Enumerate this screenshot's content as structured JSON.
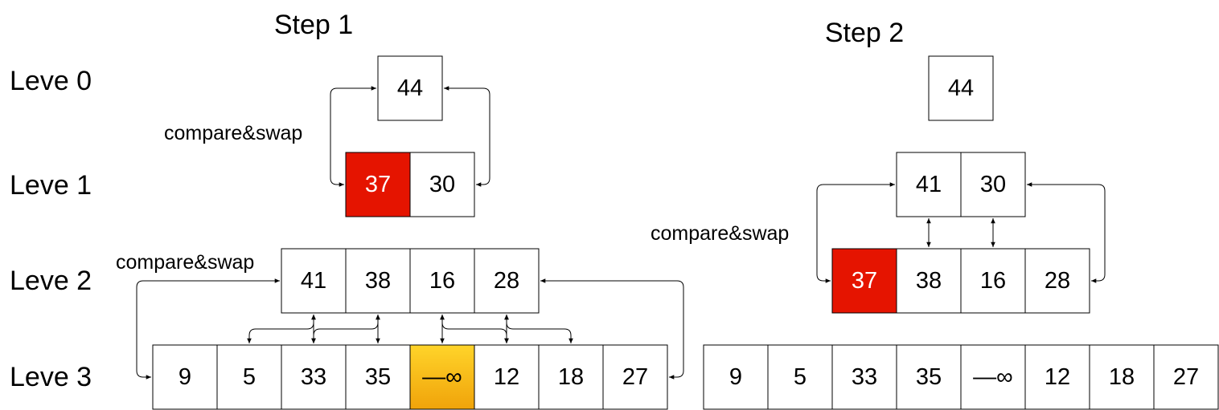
{
  "steps": [
    {
      "title": "Step 1",
      "annotations": [
        "compare&swap",
        "compare&swap"
      ]
    },
    {
      "title": "Step 2",
      "annotations": [
        "compare&swap"
      ]
    }
  ],
  "levels": [
    "Leve 0",
    "Leve 1",
    "Leve 2",
    "Leve 3"
  ],
  "step1": {
    "level0": [
      "44"
    ],
    "level1": [
      "37",
      "30"
    ],
    "level2": [
      "41",
      "38",
      "16",
      "28"
    ],
    "level3": [
      "9",
      "5",
      "33",
      "35",
      "—∞",
      "12",
      "18",
      "27"
    ]
  },
  "step2": {
    "level0": [
      "44"
    ],
    "level1": [
      "41",
      "30"
    ],
    "level2": [
      "37",
      "38",
      "16",
      "28"
    ],
    "level3": [
      "9",
      "5",
      "33",
      "35",
      "—∞",
      "12",
      "18",
      "27"
    ]
  },
  "colors": {
    "highlight_red": "#e51400",
    "highlight_orange_top": "#ffd42a",
    "highlight_orange_bottom": "#f0a30a"
  }
}
